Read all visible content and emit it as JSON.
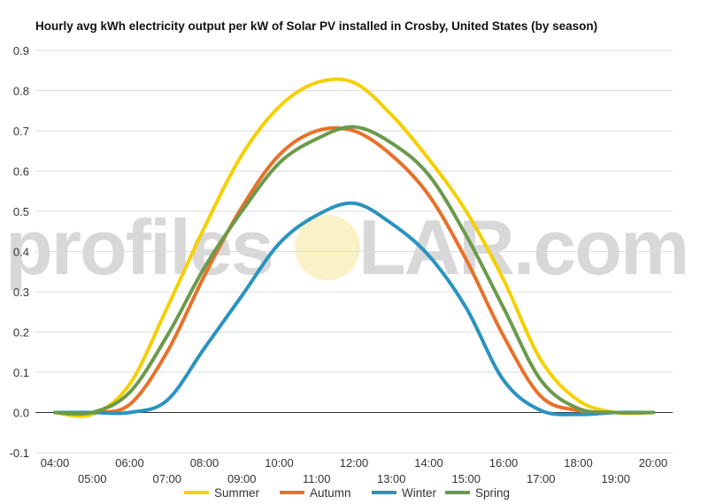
{
  "chart_data": {
    "type": "line",
    "title": "Hourly avg kWh electricity output per kW of Solar PV installed in Crosby, United States (by season)",
    "xlabel": "",
    "ylabel": "",
    "ylim": [
      -0.1,
      0.9
    ],
    "y_ticks": [
      "-0.1",
      "0.0",
      "0.1",
      "0.2",
      "0.3",
      "0.4",
      "0.5",
      "0.6",
      "0.7",
      "0.8",
      "0.9"
    ],
    "x": [
      "04:00",
      "05:00",
      "06:00",
      "07:00",
      "08:00",
      "09:00",
      "10:00",
      "11:00",
      "12:00",
      "13:00",
      "14:00",
      "15:00",
      "16:00",
      "17:00",
      "18:00",
      "19:00",
      "20:00"
    ],
    "grid": true,
    "legend_position": "bottom",
    "series": [
      {
        "name": "Summer",
        "color": "#f5d000",
        "values": [
          0.0,
          -0.005,
          0.07,
          0.26,
          0.46,
          0.64,
          0.76,
          0.82,
          0.82,
          0.74,
          0.63,
          0.5,
          0.33,
          0.13,
          0.03,
          0.0,
          0.0
        ]
      },
      {
        "name": "Autumn",
        "color": "#e8712a",
        "values": [
          0.0,
          0.0,
          0.02,
          0.15,
          0.34,
          0.51,
          0.64,
          0.7,
          0.7,
          0.64,
          0.54,
          0.38,
          0.19,
          0.04,
          0.005,
          0.0,
          0.0
        ]
      },
      {
        "name": "Winter",
        "color": "#2a93c0",
        "values": [
          0.0,
          0.0,
          0.0,
          0.03,
          0.16,
          0.29,
          0.42,
          0.49,
          0.52,
          0.47,
          0.39,
          0.26,
          0.08,
          0.005,
          -0.005,
          0.0,
          0.0
        ]
      },
      {
        "name": "Spring",
        "color": "#6b9a4a",
        "values": [
          0.0,
          0.0,
          0.05,
          0.19,
          0.36,
          0.5,
          0.62,
          0.68,
          0.71,
          0.67,
          0.59,
          0.44,
          0.26,
          0.08,
          0.01,
          0.0,
          0.0
        ]
      }
    ]
  },
  "watermark": {
    "left": "profiles",
    "right": "LAR.com"
  }
}
